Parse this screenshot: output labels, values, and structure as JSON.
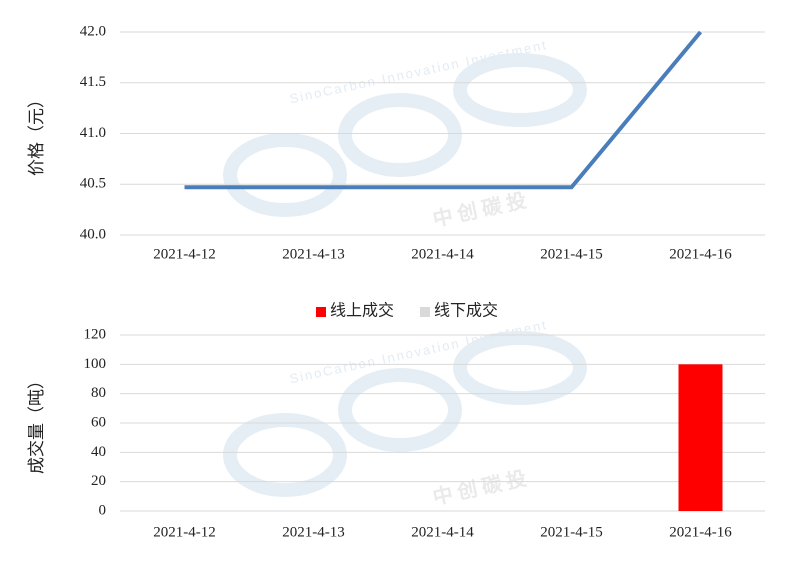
{
  "chart_data": [
    {
      "type": "line",
      "y_label": "价格（元）",
      "annotations": [
        "SinoCarbon Innovation Investment",
        "中 创 碳 投"
      ],
      "categories": [
        "2021-4-12",
        "2021-4-13",
        "2021-4-14",
        "2021-4-15",
        "2021-4-16"
      ],
      "series": [
        {
          "name": "价格",
          "color": "#4a7ebb",
          "values": [
            40.47,
            40.47,
            40.47,
            40.47,
            42.0
          ]
        }
      ],
      "ylim": [
        40.0,
        42.0
      ],
      "yticks": [
        {
          "value": 40.0,
          "label": "40.0"
        },
        {
          "value": 40.5,
          "label": "40.5"
        },
        {
          "value": 41.0,
          "label": "41.0"
        },
        {
          "value": 41.5,
          "label": "41.5"
        },
        {
          "value": 42.0,
          "label": "42.0"
        }
      ],
      "grid": true
    },
    {
      "type": "bar",
      "y_label": "成交量（吨）",
      "annotations": [
        "SinoCarbon Innovation Investment",
        "中 创 碳 投"
      ],
      "categories": [
        "2021-4-12",
        "2021-4-13",
        "2021-4-14",
        "2021-4-15",
        "2021-4-16"
      ],
      "series": [
        {
          "name": "线上成交",
          "color": "#ff0000",
          "values": [
            0,
            0,
            0,
            0,
            100
          ]
        },
        {
          "name": "线下成交",
          "color": "#d9d9d9",
          "values": [
            0,
            0,
            0,
            0,
            0
          ]
        }
      ],
      "ylim": [
        0,
        120
      ],
      "yticks": [
        0,
        20,
        40,
        60,
        80,
        100,
        120
      ],
      "grid": true,
      "legend": "top"
    }
  ]
}
